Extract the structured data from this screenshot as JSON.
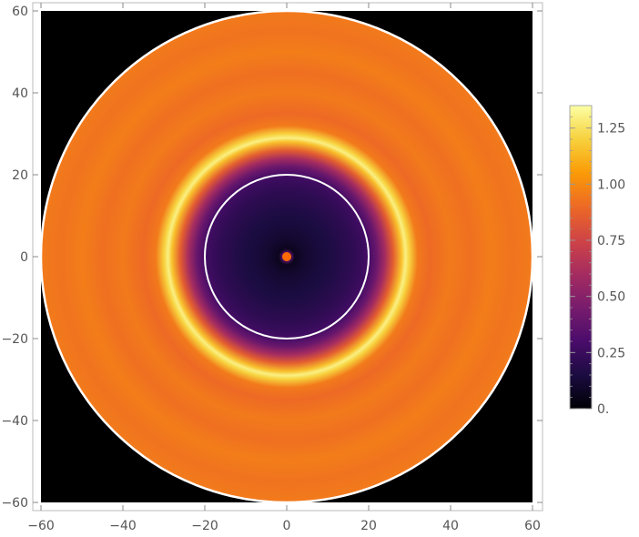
{
  "chart_data": {
    "type": "heatmap",
    "title": "",
    "xlabel": "",
    "ylabel": "",
    "xlim": [
      -60,
      60
    ],
    "ylim": [
      -60,
      60
    ],
    "x_ticks": [
      "−60",
      "−40",
      "−20",
      "0",
      "20",
      "40",
      "60"
    ],
    "y_ticks": [
      "−60",
      "−40",
      "−20",
      "0",
      "20",
      "40",
      "60"
    ],
    "x_tick_values": [
      -60,
      -40,
      -20,
      0,
      20,
      40,
      60
    ],
    "y_tick_values": [
      -60,
      -40,
      -20,
      0,
      20,
      40,
      60
    ],
    "grid": false,
    "background_outside_disk": "#000000",
    "colorbar": {
      "range": [
        0,
        1.35
      ],
      "ticks": [
        "0.",
        "0.25",
        "0.50",
        "0.75",
        "1.00",
        "1.25"
      ],
      "tick_values": [
        0,
        0.25,
        0.5,
        0.75,
        1.0,
        1.25
      ],
      "colormap": [
        "#000004",
        "#1b0c41",
        "#4a0c6b",
        "#781c6d",
        "#a52c60",
        "#cf4446",
        "#ed6925",
        "#fb9b06",
        "#f7d13d",
        "#fcffa4"
      ],
      "placement": "right"
    },
    "radial_profile": {
      "r": [
        0,
        1,
        2,
        4,
        6,
        8,
        10,
        12,
        14,
        16,
        18,
        20,
        22,
        24,
        26,
        28,
        29,
        30,
        32,
        35,
        40,
        45,
        50,
        55,
        60
      ],
      "value": [
        0.8,
        0.35,
        0.06,
        0.1,
        0.12,
        0.14,
        0.15,
        0.17,
        0.19,
        0.21,
        0.24,
        0.28,
        0.4,
        0.6,
        0.85,
        1.15,
        1.3,
        1.2,
        0.95,
        0.9,
        0.95,
        0.92,
        0.96,
        0.93,
        0.95
      ]
    },
    "annotations": [
      {
        "type": "circle",
        "center": [
          0,
          0
        ],
        "radius": 20,
        "color": "#ffffff"
      },
      {
        "type": "circle",
        "center": [
          0,
          0
        ],
        "radius": 60,
        "color": "#ffffff"
      },
      {
        "type": "point",
        "center": [
          0,
          0
        ],
        "color": "#ff6a00"
      }
    ]
  }
}
